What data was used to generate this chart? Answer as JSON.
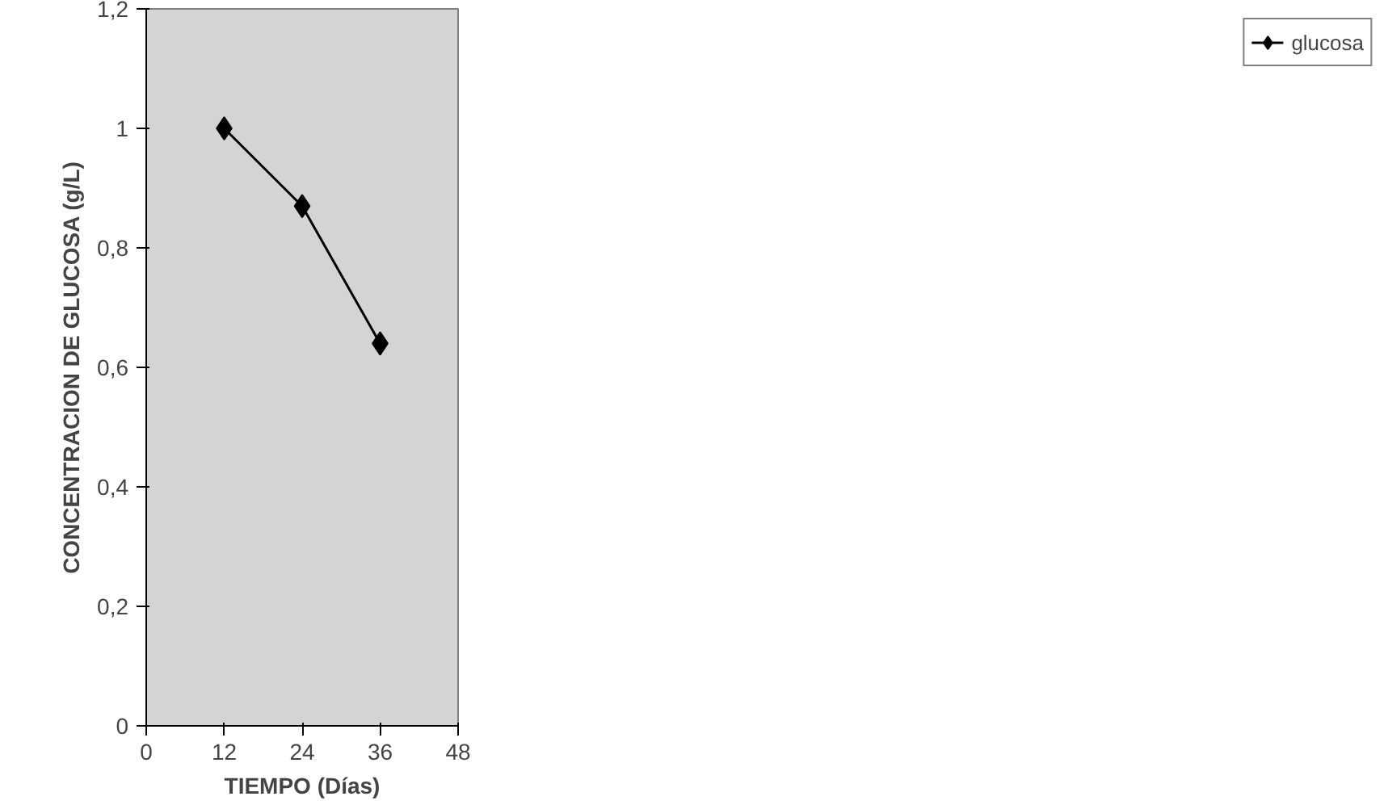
{
  "chart_data": {
    "type": "line",
    "xlabel": "TIEMPO (Días)",
    "ylabel": "CONCENTRACION DE GLUCOSA (g/L)",
    "x": [
      12,
      24,
      36
    ],
    "series": [
      {
        "name": "glucosa",
        "color": "#000000",
        "values": [
          1.0,
          0.87,
          0.64
        ]
      }
    ],
    "xlim": [
      0,
      48
    ],
    "xticks": [
      0,
      12,
      24,
      36,
      48
    ],
    "ylim": [
      0,
      1.2
    ],
    "yticks": [
      {
        "value": 0,
        "label": "0"
      },
      {
        "value": 0.2,
        "label": "0,2"
      },
      {
        "value": 0.4,
        "label": "0,4"
      },
      {
        "value": 0.6,
        "label": "0,6"
      },
      {
        "value": 0.8,
        "label": "0,8"
      },
      {
        "value": 1,
        "label": "1"
      },
      {
        "value": 1.2,
        "label": "1,2"
      }
    ],
    "grid": false,
    "legend": "right",
    "marker": "diamond",
    "line_style": "solid"
  }
}
